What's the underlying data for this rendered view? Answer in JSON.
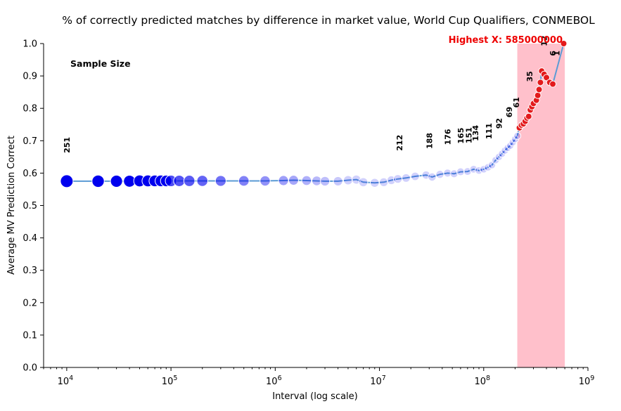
{
  "chart_data": {
    "type": "scatter",
    "title": "% of correctly predicted matches by difference in market value, World Cup Qualifiers, CONMEBOL",
    "xlabel": "Interval (log scale)",
    "ylabel": "Average MV Prediction Correct",
    "xscale": "log",
    "xlim": [
      6000,
      1000000000
    ],
    "ylim": [
      0,
      1
    ],
    "x_tick_exponents": [
      4,
      5,
      6,
      7,
      8,
      9
    ],
    "x_tick_base": "10",
    "y_ticks": [
      "0.0",
      "0.1",
      "0.2",
      "0.3",
      "0.4",
      "0.5",
      "0.6",
      "0.7",
      "0.8",
      "0.9",
      "1.0"
    ],
    "y_tick_values": [
      0,
      0.1,
      0.2,
      0.3,
      0.4,
      0.5,
      0.6,
      0.7,
      0.8,
      0.9,
      1.0
    ],
    "grid": false,
    "colors": {
      "line": "#5b9bd5",
      "marker_main": "#0000ee",
      "marker_highlight": "#e31a1c",
      "highlight_band": "#ffc0cb",
      "annotation_red": "#ee0000"
    },
    "highlight_region": {
      "x_start": 210000000,
      "x_end": 600000000
    },
    "highest_x_label": "Highest X: 585000000",
    "sample_size_label": "Sample Size",
    "series": [
      {
        "points": [
          [
            10000,
            0.575
          ],
          [
            20000,
            0.575
          ],
          [
            30000,
            0.575
          ],
          [
            40000,
            0.575
          ],
          [
            50000,
            0.576
          ],
          [
            60000,
            0.576
          ],
          [
            70000,
            0.576
          ],
          [
            80000,
            0.576
          ],
          [
            90000,
            0.576
          ],
          [
            100000,
            0.576
          ],
          [
            120000,
            0.576
          ],
          [
            150000,
            0.576
          ],
          [
            200000,
            0.576
          ],
          [
            300000,
            0.576
          ],
          [
            500000,
            0.576
          ],
          [
            800000,
            0.576
          ],
          [
            1200000,
            0.577
          ],
          [
            1500000,
            0.578
          ],
          [
            2000000,
            0.577
          ],
          [
            2500000,
            0.576
          ],
          [
            3000000,
            0.575
          ],
          [
            4000000,
            0.575
          ],
          [
            5000000,
            0.578
          ],
          [
            6000000,
            0.58
          ],
          [
            7000000,
            0.572
          ],
          [
            9000000,
            0.57
          ],
          [
            11000000,
            0.572
          ],
          [
            13000000,
            0.578
          ],
          [
            15000000,
            0.582
          ],
          [
            18000000,
            0.585
          ],
          [
            22000000,
            0.59
          ],
          [
            28000000,
            0.594
          ],
          [
            32000000,
            0.588
          ],
          [
            38000000,
            0.596
          ],
          [
            45000000,
            0.6
          ],
          [
            52000000,
            0.598
          ],
          [
            60000000,
            0.604
          ],
          [
            70000000,
            0.605
          ],
          [
            80000000,
            0.612
          ],
          [
            90000000,
            0.608
          ],
          [
            100000000,
            0.612
          ],
          [
            110000000,
            0.618
          ],
          [
            120000000,
            0.625
          ],
          [
            130000000,
            0.64
          ],
          [
            140000000,
            0.65
          ],
          [
            150000000,
            0.66
          ],
          [
            160000000,
            0.67
          ],
          [
            170000000,
            0.678
          ],
          [
            180000000,
            0.685
          ],
          [
            190000000,
            0.695
          ],
          [
            200000000,
            0.705
          ],
          [
            210000000,
            0.715
          ]
        ]
      },
      {
        "points": [
          [
            220000000,
            0.74
          ],
          [
            230000000,
            0.748
          ],
          [
            240000000,
            0.752
          ],
          [
            250000000,
            0.76
          ],
          [
            260000000,
            0.77
          ],
          [
            270000000,
            0.775
          ],
          [
            280000000,
            0.795
          ],
          [
            290000000,
            0.805
          ],
          [
            300000000,
            0.815
          ],
          [
            320000000,
            0.825
          ],
          [
            330000000,
            0.84
          ],
          [
            340000000,
            0.858
          ],
          [
            350000000,
            0.88
          ],
          [
            360000000,
            0.915
          ],
          [
            380000000,
            0.905
          ],
          [
            400000000,
            0.895
          ],
          [
            430000000,
            0.88
          ],
          [
            460000000,
            0.875
          ],
          [
            585000000,
            1.0
          ]
        ]
      }
    ],
    "sample_size_annotations": [
      {
        "x": 10000,
        "label": "251"
      },
      {
        "x": 15500000,
        "label": "212"
      },
      {
        "x": 30000000,
        "label": "188"
      },
      {
        "x": 45000000,
        "label": "176"
      },
      {
        "x": 60000000,
        "label": "165"
      },
      {
        "x": 72000000,
        "label": "151"
      },
      {
        "x": 83000000,
        "label": "134"
      },
      {
        "x": 112000000,
        "label": "111"
      },
      {
        "x": 140000000,
        "label": "92"
      },
      {
        "x": 175000000,
        "label": "69"
      },
      {
        "x": 205000000,
        "label": "61"
      },
      {
        "x": 275000000,
        "label": "35"
      },
      {
        "x": 380000000,
        "label": "12"
      },
      {
        "x": 460000000,
        "label": "6"
      },
      {
        "x": 500000000,
        "label": "1"
      }
    ]
  }
}
